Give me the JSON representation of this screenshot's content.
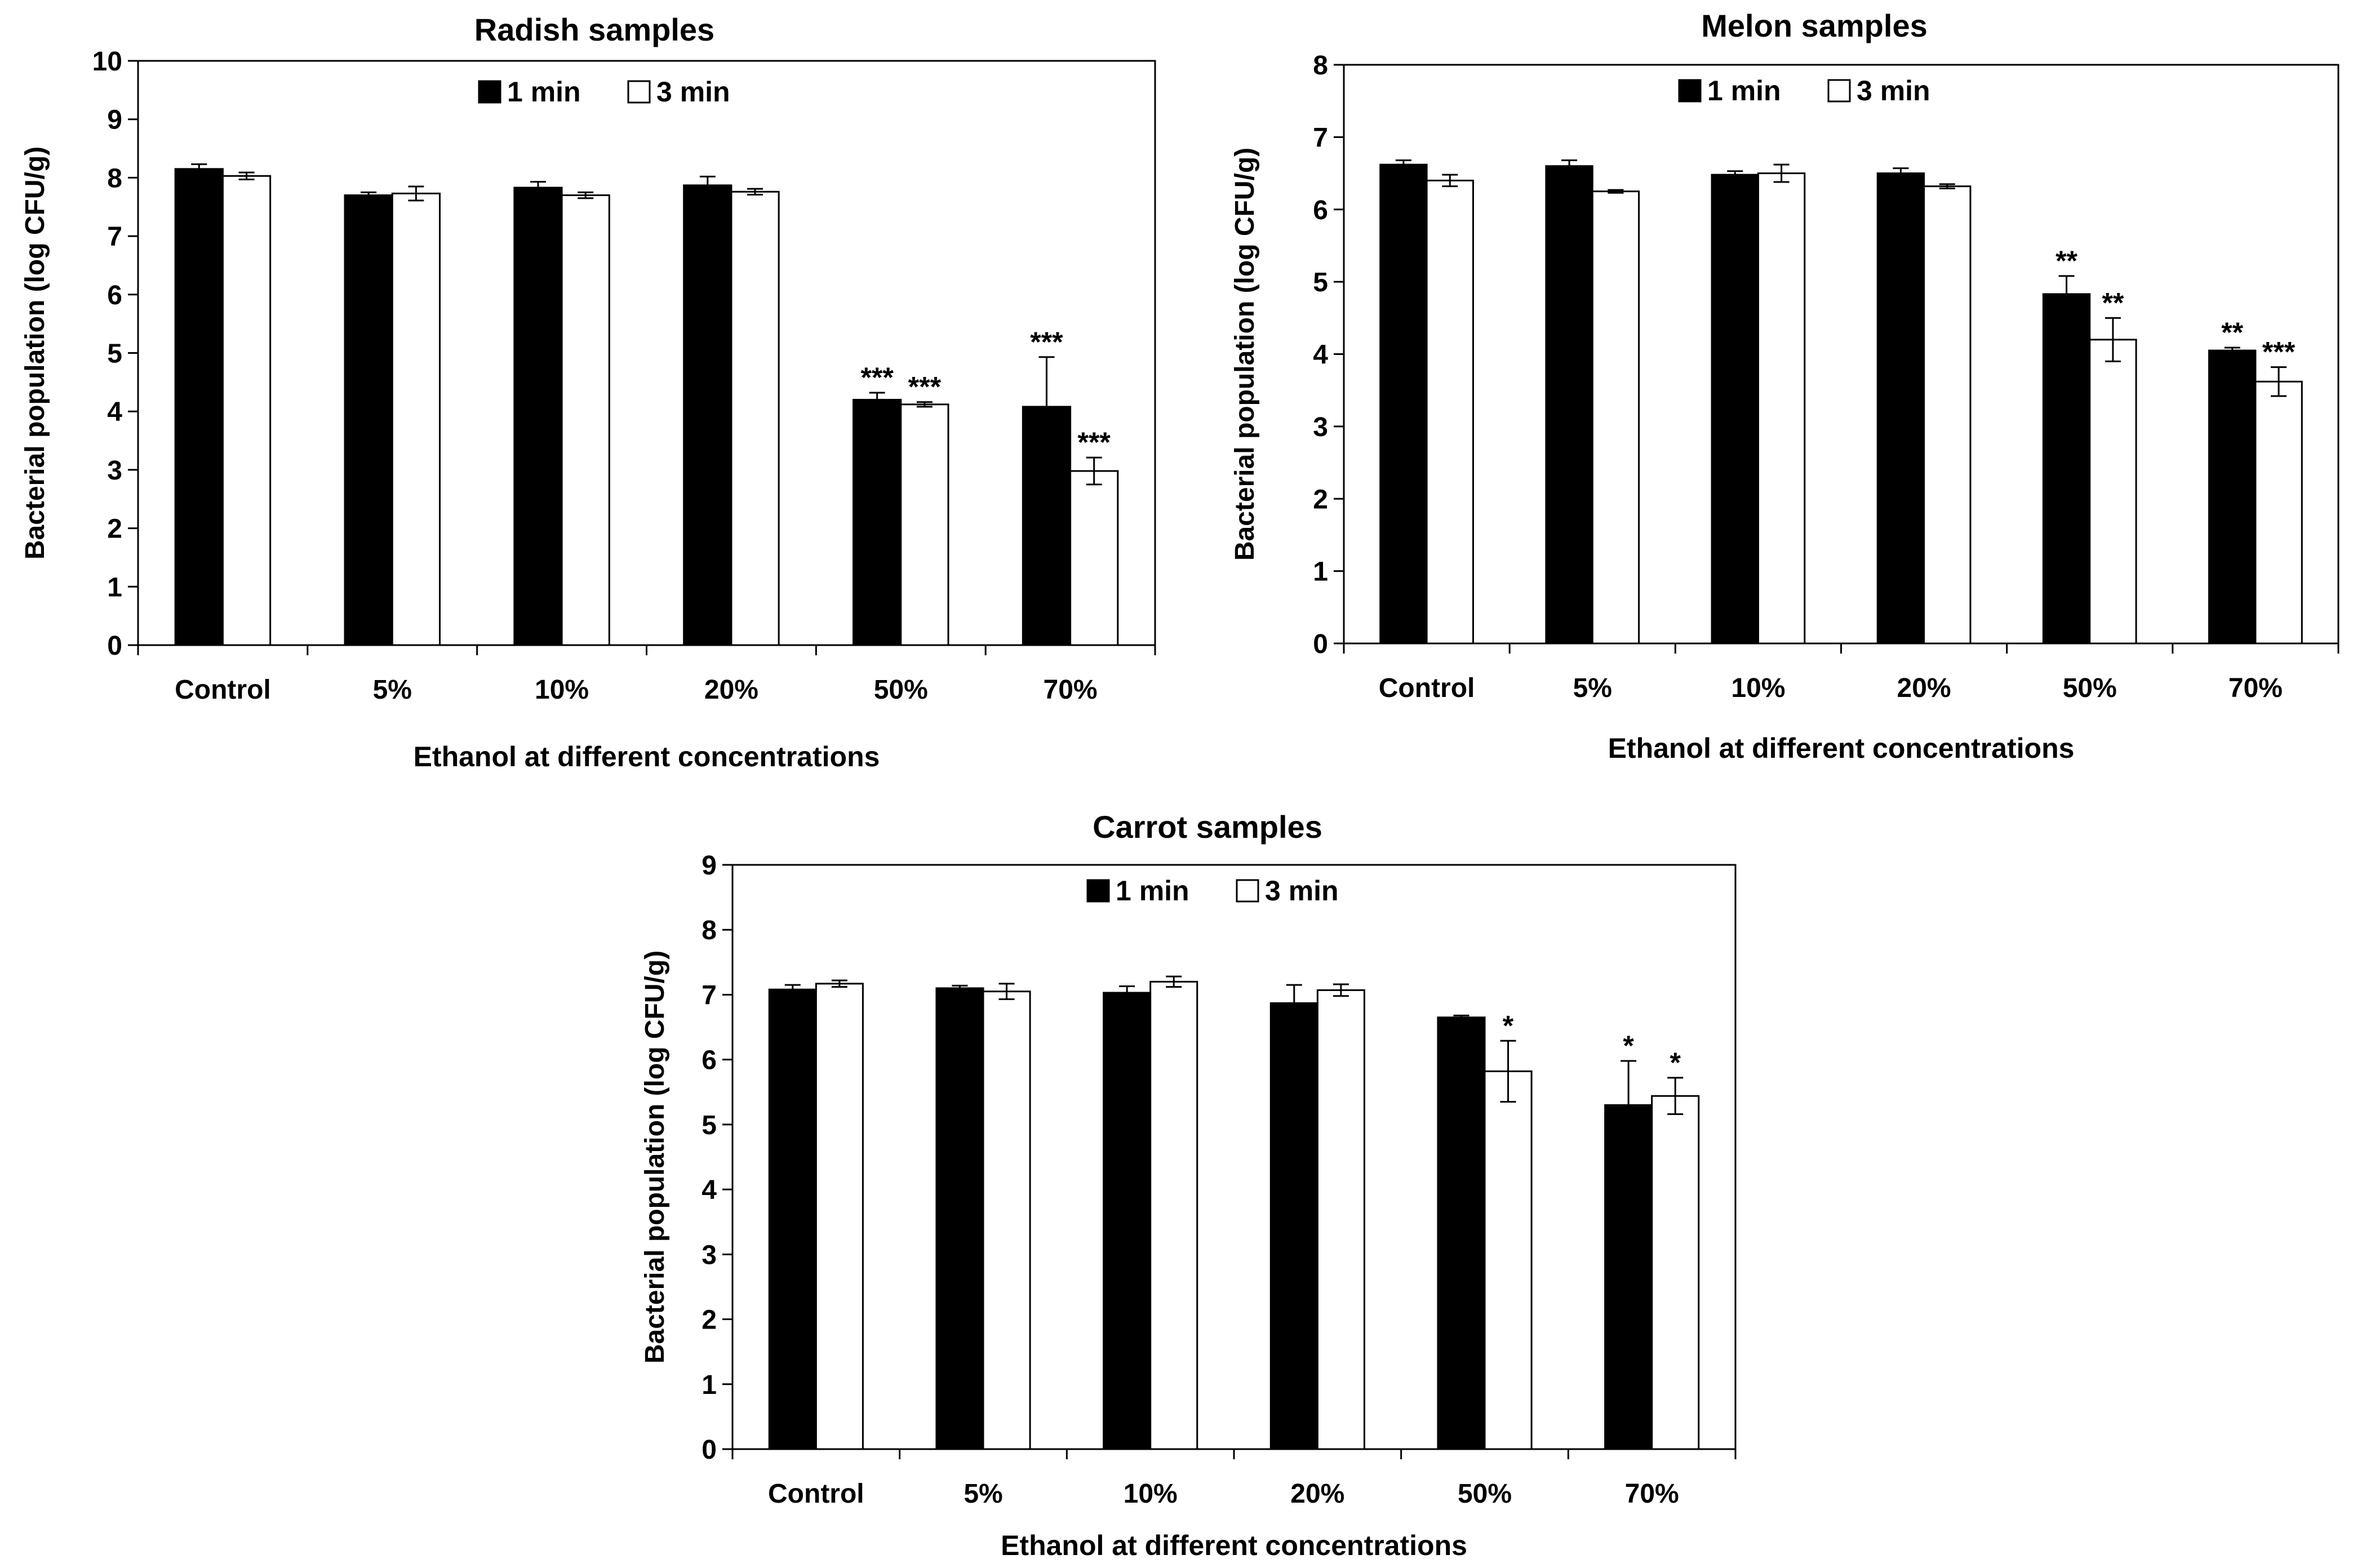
{
  "chart_data": [
    {
      "type": "bar",
      "title": "Radish samples",
      "xlabel": "Ethanol at different concentrations",
      "ylabel": "Bacterial population  (log CFU/g)",
      "ylim": [
        0,
        10
      ],
      "yticks": [
        0,
        1,
        2,
        3,
        4,
        5,
        6,
        7,
        8,
        9,
        10
      ],
      "categories": [
        "Control",
        "5%",
        "10%",
        "20%",
        "50%",
        "70%"
      ],
      "legend_position": "top-center",
      "series": [
        {
          "name": "1 min",
          "color": "#000000",
          "values": [
            8.15,
            7.7,
            7.83,
            7.87,
            4.2,
            4.08
          ],
          "errors": [
            0.08,
            0.05,
            0.1,
            0.15,
            0.12,
            0.85
          ],
          "annotations": [
            "",
            "",
            "",
            "",
            "***",
            "***"
          ]
        },
        {
          "name": "3 min",
          "color": "#ffffff",
          "values": [
            8.03,
            7.73,
            7.7,
            7.76,
            4.12,
            2.98
          ],
          "errors": [
            0.06,
            0.12,
            0.05,
            0.05,
            0.04,
            0.23
          ],
          "annotations": [
            "",
            "",
            "",
            "",
            "***",
            "***"
          ]
        }
      ]
    },
    {
      "type": "bar",
      "title": "Melon samples",
      "xlabel": "Ethanol at different concentrations",
      "ylabel": "Bacterial population  (log CFU/g)",
      "ylim": [
        0,
        8
      ],
      "yticks": [
        0,
        1,
        2,
        3,
        4,
        5,
        6,
        7,
        8
      ],
      "categories": [
        "Control",
        "5%",
        "10%",
        "20%",
        "50%",
        "70%"
      ],
      "legend_position": "top-center",
      "series": [
        {
          "name": "1 min",
          "color": "#000000",
          "values": [
            6.62,
            6.6,
            6.48,
            6.5,
            4.83,
            4.05
          ],
          "errors": [
            0.06,
            0.08,
            0.05,
            0.07,
            0.25,
            0.04
          ],
          "annotations": [
            "",
            "",
            "",
            "",
            "**",
            "**"
          ]
        },
        {
          "name": "3 min",
          "color": "#ffffff",
          "values": [
            6.4,
            6.25,
            6.5,
            6.32,
            4.2,
            3.62
          ],
          "errors": [
            0.08,
            0.02,
            0.12,
            0.03,
            0.3,
            0.2
          ],
          "annotations": [
            "",
            "",
            "",
            "",
            "**",
            "***"
          ]
        }
      ]
    },
    {
      "type": "bar",
      "title": "Carrot samples",
      "xlabel": "Ethanol at different concentrations",
      "ylabel": "Bacterial population  (log CFU/g)",
      "ylim": [
        0,
        9
      ],
      "yticks": [
        0,
        1,
        2,
        3,
        4,
        5,
        6,
        7,
        8,
        9
      ],
      "categories": [
        "Control",
        "5%",
        "10%",
        "20%",
        "50%",
        "70%"
      ],
      "legend_position": "top-center",
      "series": [
        {
          "name": "1 min",
          "color": "#000000",
          "values": [
            7.08,
            7.1,
            7.03,
            6.87,
            6.65,
            5.3
          ],
          "errors": [
            0.07,
            0.04,
            0.1,
            0.28,
            0.03,
            0.68
          ],
          "annotations": [
            "",
            "",
            "",
            "",
            "",
            "*"
          ]
        },
        {
          "name": "3 min",
          "color": "#ffffff",
          "values": [
            7.17,
            7.05,
            7.2,
            7.07,
            5.82,
            5.44
          ],
          "errors": [
            0.05,
            0.12,
            0.08,
            0.09,
            0.47,
            0.28
          ],
          "annotations": [
            "",
            "",
            "",
            "",
            "*",
            "*"
          ]
        }
      ]
    }
  ]
}
